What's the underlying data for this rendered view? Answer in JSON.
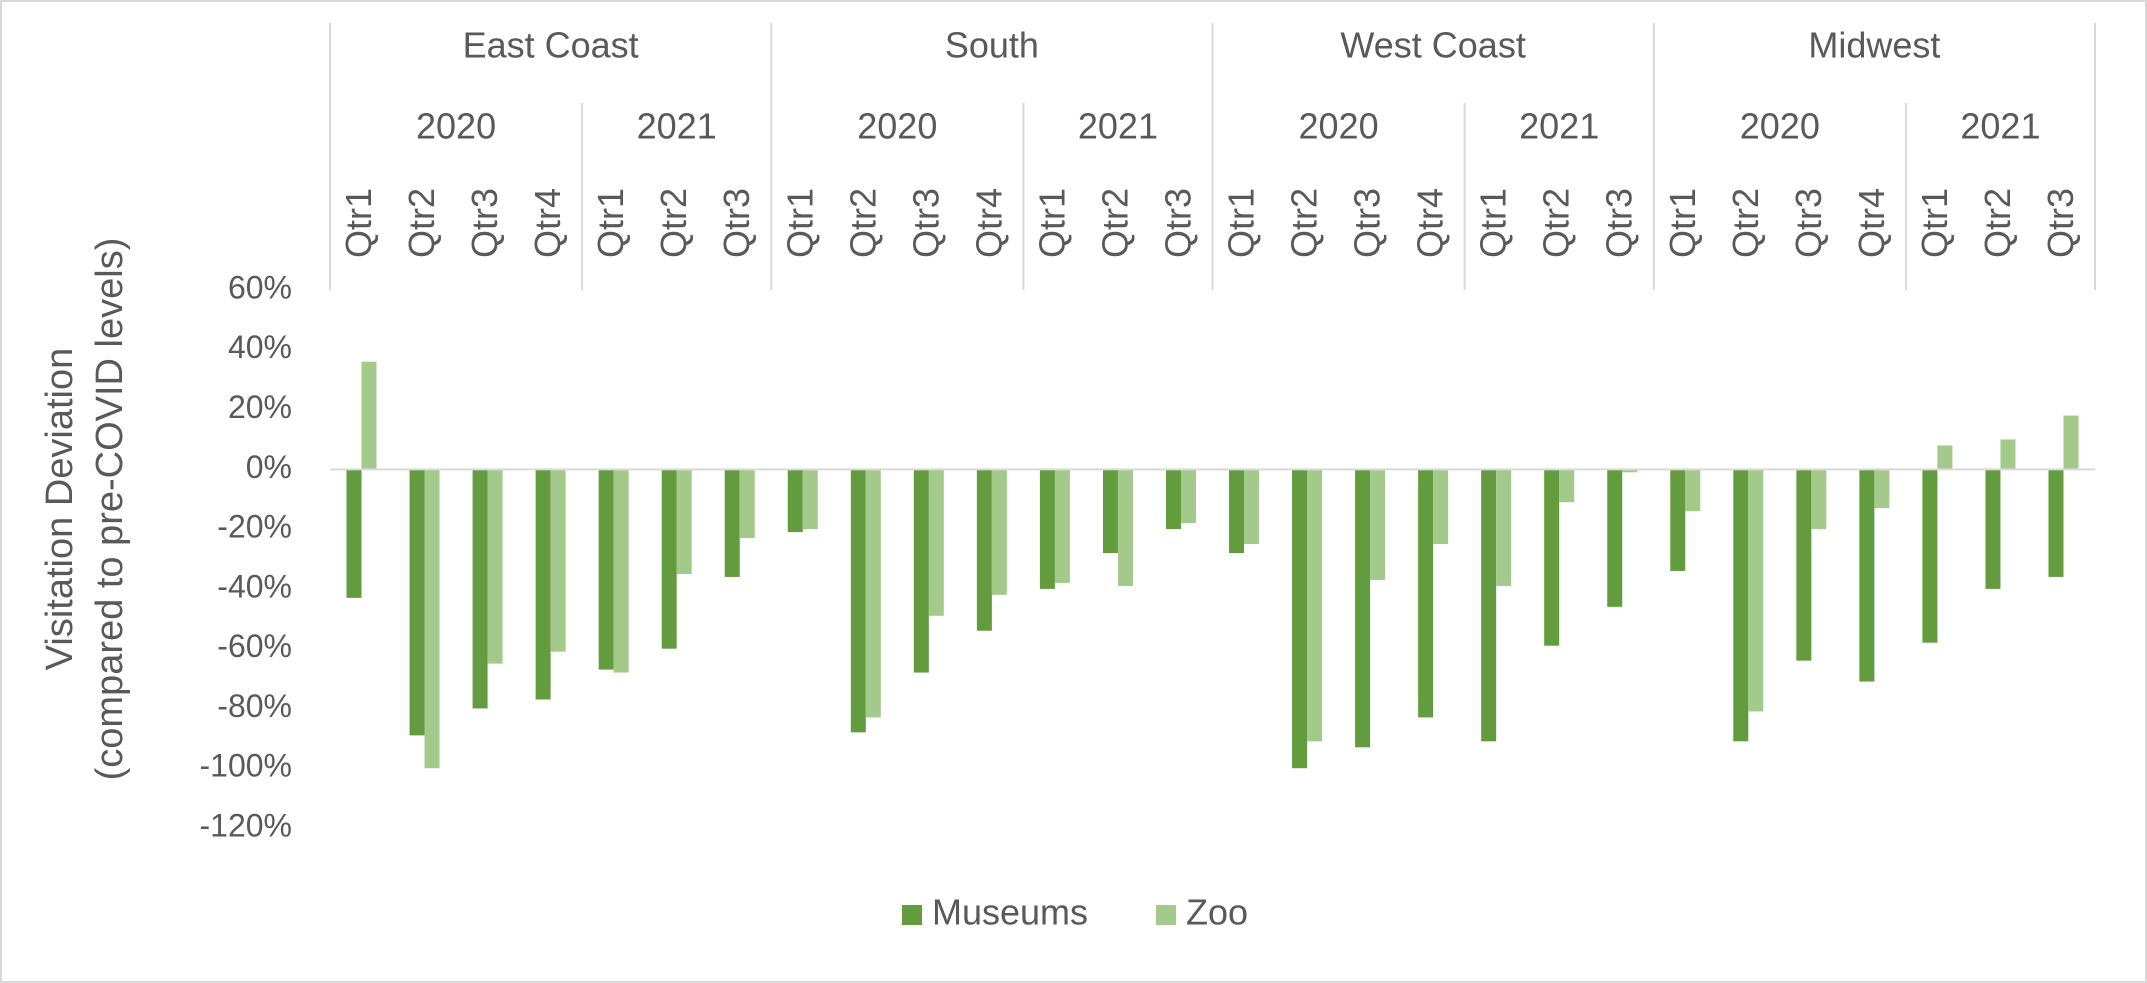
{
  "chart_data": {
    "type": "bar",
    "y_label": [
      "Visitation Deviation",
      "(compared to pre-COVID levels)"
    ],
    "groups": [
      {
        "name": "East Coast",
        "subgroups": [
          {
            "name": "2020",
            "categories": [
              "Qtr1",
              "Qtr2",
              "Qtr3",
              "Qtr4"
            ]
          },
          {
            "name": "2021",
            "categories": [
              "Qtr1",
              "Qtr2",
              "Qtr3"
            ]
          }
        ]
      },
      {
        "name": "South",
        "subgroups": [
          {
            "name": "2020",
            "categories": [
              "Qtr1",
              "Qtr2",
              "Qtr3",
              "Qtr4"
            ]
          },
          {
            "name": "2021",
            "categories": [
              "Qtr1",
              "Qtr2",
              "Qtr3"
            ]
          }
        ]
      },
      {
        "name": "West Coast",
        "subgroups": [
          {
            "name": "2020",
            "categories": [
              "Qtr1",
              "Qtr2",
              "Qtr3",
              "Qtr4"
            ]
          },
          {
            "name": "2021",
            "categories": [
              "Qtr1",
              "Qtr2",
              "Qtr3"
            ]
          }
        ]
      },
      {
        "name": "Midwest",
        "subgroups": [
          {
            "name": "2020",
            "categories": [
              "Qtr1",
              "Qtr2",
              "Qtr3",
              "Qtr4"
            ]
          },
          {
            "name": "2021",
            "categories": [
              "Qtr1",
              "Qtr2",
              "Qtr3"
            ]
          }
        ]
      }
    ],
    "series": [
      {
        "name": "Museums",
        "color": "#629c3f",
        "values": [
          -43,
          -89,
          -80,
          -77,
          -67,
          -60,
          -36,
          -21,
          -88,
          -68,
          -54,
          -40,
          -28,
          -20,
          -28,
          -100,
          -93,
          -83,
          -91,
          -59,
          -46,
          -34,
          -91,
          -64,
          -71,
          -58,
          -40,
          -36
        ]
      },
      {
        "name": "Zoo",
        "color": "#a3c98b",
        "values": [
          36,
          -100,
          -65,
          -61,
          -68,
          -35,
          -23,
          -20,
          -83,
          -49,
          -42,
          -38,
          -39,
          -18,
          -25,
          -91,
          -37,
          -25,
          -39,
          -11,
          -1,
          -14,
          -81,
          -20,
          -13,
          8,
          10,
          18
        ]
      }
    ],
    "ylim": [
      -120,
      60
    ],
    "yticks": [
      {
        "value": -120,
        "label": "-120%"
      },
      {
        "value": -100,
        "label": "-100%"
      },
      {
        "value": -80,
        "label": "-80%"
      },
      {
        "value": -60,
        "label": "-60%"
      },
      {
        "value": -40,
        "label": "-40%"
      },
      {
        "value": -20,
        "label": "-20%"
      },
      {
        "value": 0,
        "label": "0%"
      },
      {
        "value": 20,
        "label": "20%"
      },
      {
        "value": 40,
        "label": "40%"
      },
      {
        "value": 60,
        "label": "60%"
      }
    ],
    "grid": false,
    "legend": "bottom"
  }
}
